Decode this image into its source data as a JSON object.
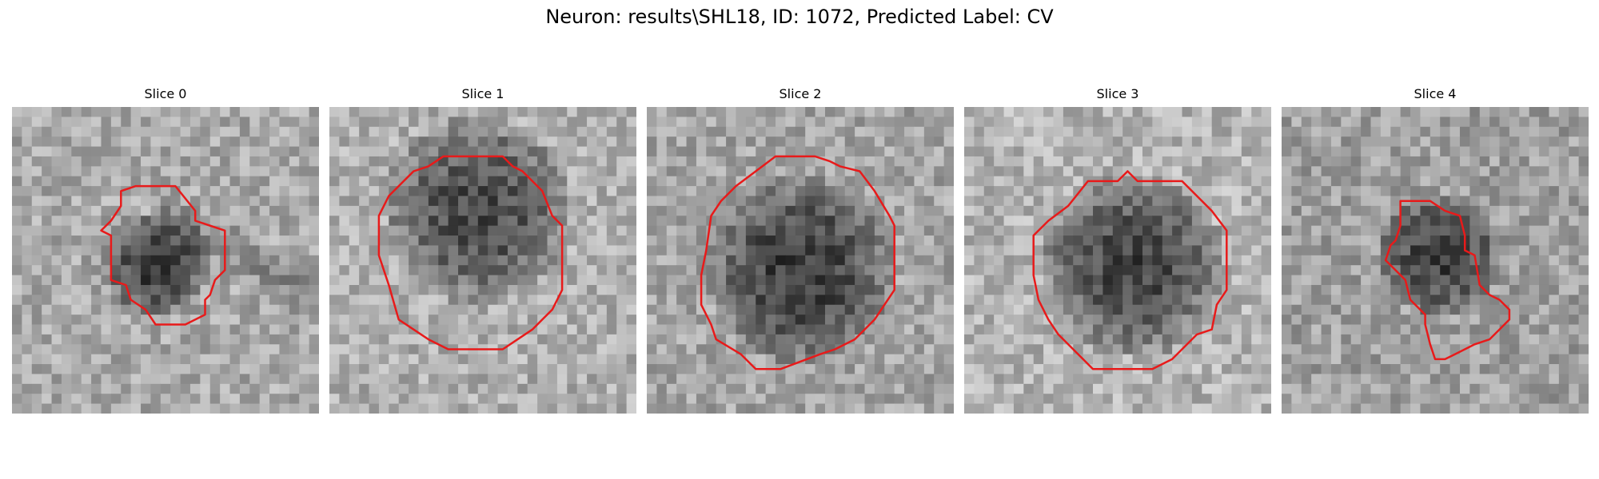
{
  "figure": {
    "title": "Neuron: results\\SHL18, ID: 1072, Predicted Label: CV"
  },
  "colors": {
    "contour": "#e81a1a",
    "background": "#ffffff"
  },
  "panels": [
    {
      "title": "Slice 0"
    },
    {
      "title": "Slice 1"
    },
    {
      "title": "Slice 2"
    },
    {
      "title": "Slice 3"
    },
    {
      "title": "Slice 4"
    }
  ]
}
